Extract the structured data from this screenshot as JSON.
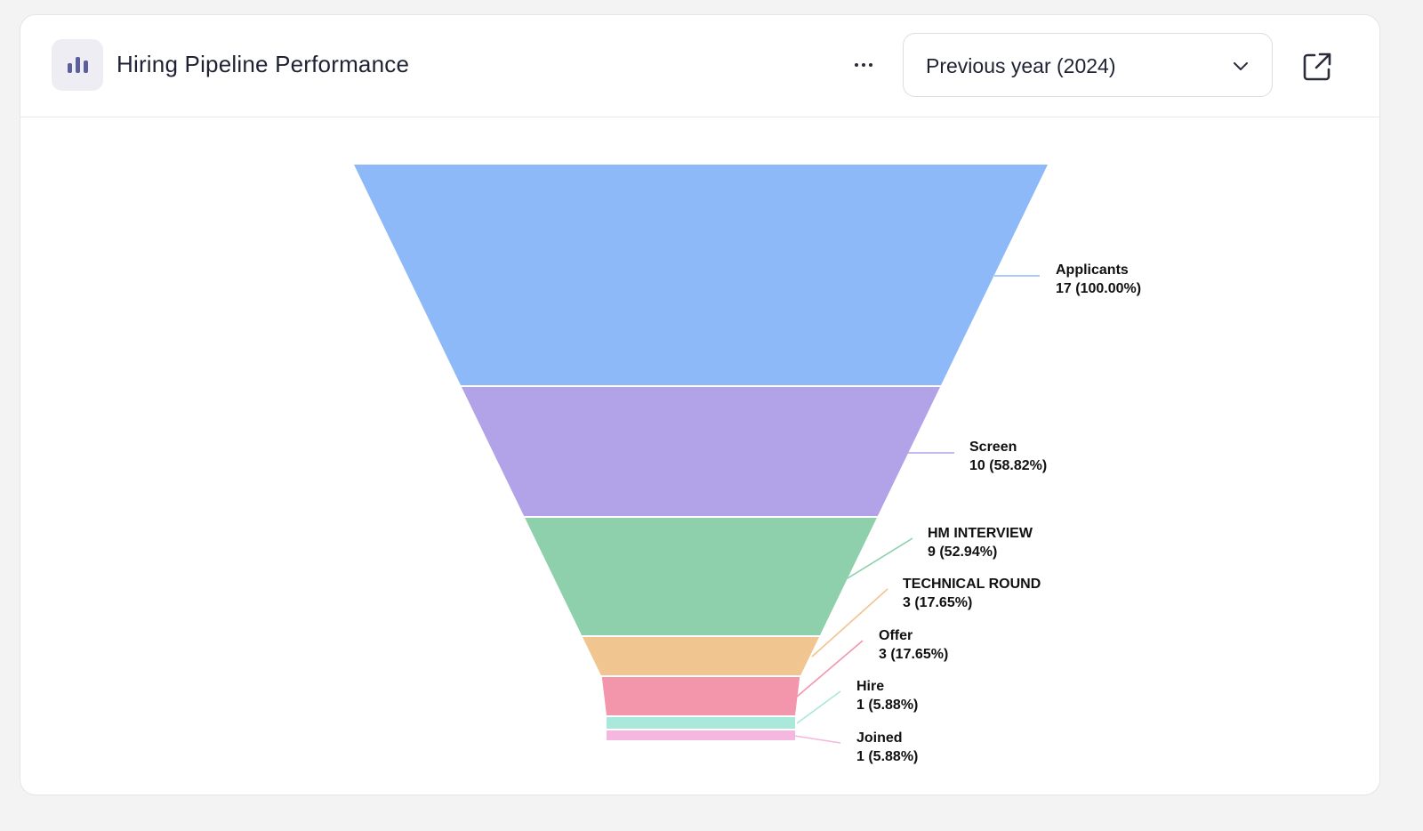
{
  "header": {
    "title": "Hiring Pipeline Performance",
    "more_icon": "more-horizontal-icon",
    "period_select": {
      "value": "Previous year (2024)"
    },
    "chevron_icon": "chevron-down-icon",
    "external_icon": "external-link-icon",
    "chart_icon": "bar-chart-icon"
  },
  "chart_data": {
    "type": "funnel",
    "stages": [
      {
        "label": "Applicants",
        "value": 17,
        "percent_text": "17 (100.00%)",
        "color": "#8db9f8"
      },
      {
        "label": "Screen",
        "value": 10,
        "percent_text": "10 (58.82%)",
        "color": "#b2a2e8"
      },
      {
        "label": "HM INTERVIEW",
        "value": 9,
        "percent_text": "9 (52.94%)",
        "color": "#8ed0ab"
      },
      {
        "label": "TECHNICAL ROUND",
        "value": 3,
        "percent_text": "3 (17.65%)",
        "color": "#f0c590"
      },
      {
        "label": "Offer",
        "value": 3,
        "percent_text": "3 (17.65%)",
        "color": "#f396ac"
      },
      {
        "label": "Hire",
        "value": 1,
        "percent_text": "1 (5.88%)",
        "color": "#a9e8da"
      },
      {
        "label": "Joined",
        "value": 1,
        "percent_text": "1 (5.88%)",
        "color": "#f5b6e0"
      }
    ]
  }
}
